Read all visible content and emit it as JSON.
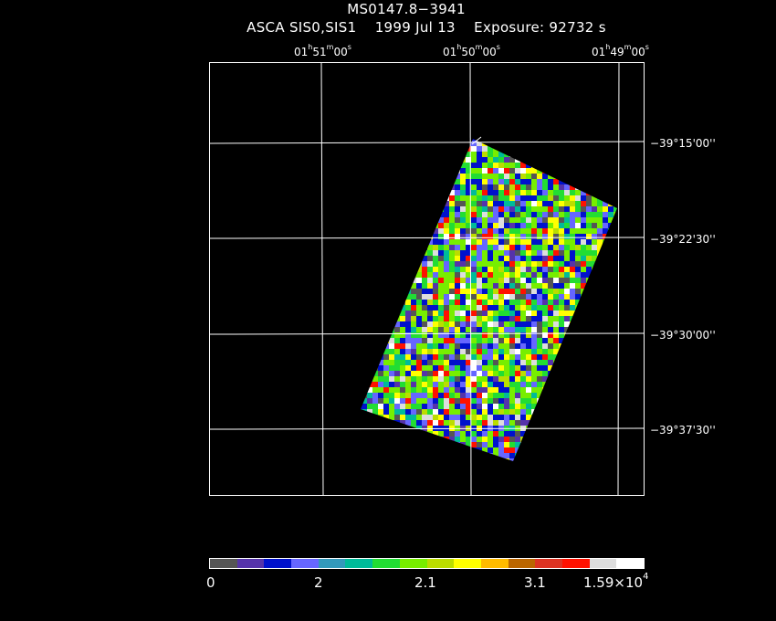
{
  "title": "MS0147.8−3941",
  "subtitle": "ASCA SIS0,SIS1    1999 Jul 13    Exposure: 92732 s",
  "ra_labels": [
    {
      "h": "01",
      "hu": "h",
      "m": "51",
      "mu": "m",
      "s": "00",
      "su": "s"
    },
    {
      "h": "01",
      "hu": "h",
      "m": "50",
      "mu": "m",
      "s": "00",
      "su": "s"
    },
    {
      "h": "01",
      "hu": "h",
      "m": "49",
      "mu": "m",
      "s": "00",
      "su": "s"
    }
  ],
  "dec_labels": [
    "−39°15'00''",
    "−39°22'30''",
    "−39°30'00''",
    "−39°37'30''"
  ],
  "colorbar": {
    "colors": [
      "#555555",
      "#5533aa",
      "#0011cc",
      "#6666ff",
      "#3399bb",
      "#00bb99",
      "#22dd33",
      "#77ee00",
      "#bbdd00",
      "#ffff00",
      "#ffbb00",
      "#bb6600",
      "#dd3322",
      "#ff1100",
      "#dddddd",
      "#ffffff"
    ],
    "labels": [
      {
        "text": "0"
      },
      {
        "text": "2"
      },
      {
        "text": "2.1"
      },
      {
        "text": "3.1"
      },
      {
        "text": "1.59×10",
        "exp": "4"
      }
    ]
  }
}
